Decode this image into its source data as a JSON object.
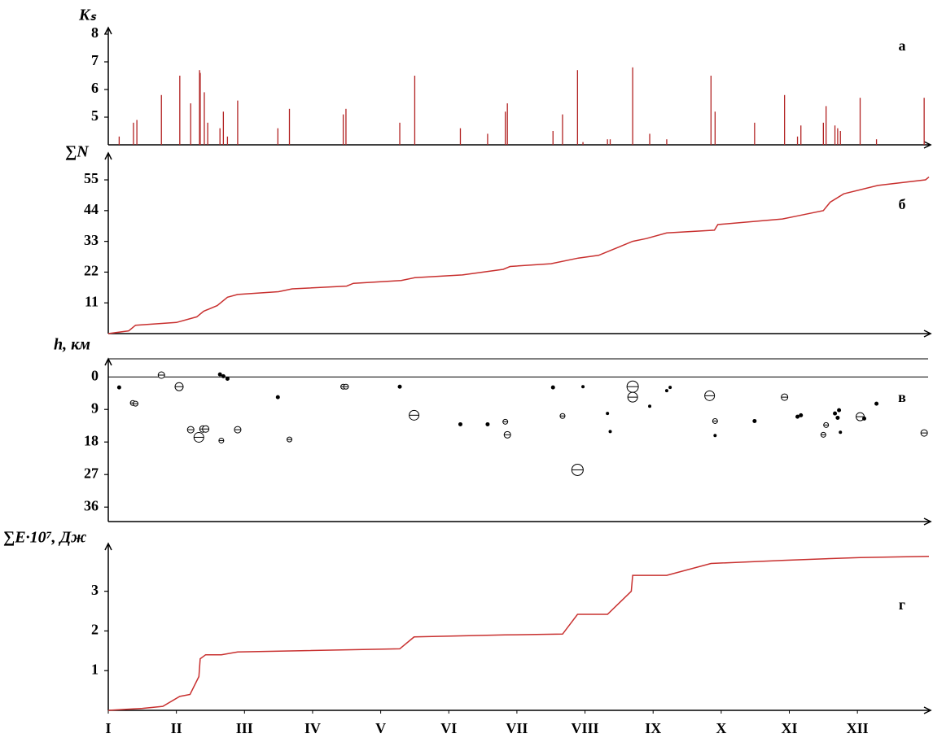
{
  "chart_data": [
    {
      "type": "bar",
      "y_label": "Kₛ",
      "annotation": "а",
      "color": "#b22222",
      "x": [
        0.16,
        0.37,
        0.42,
        0.78,
        1.05,
        1.21,
        1.34,
        1.35,
        1.41,
        1.46,
        1.64,
        1.69,
        1.75,
        1.9,
        2.49,
        2.66,
        3.45,
        3.49,
        4.28,
        4.5,
        5.17,
        5.57,
        5.83,
        5.86,
        6.53,
        6.67,
        6.89,
        6.97,
        7.33,
        7.37,
        7.7,
        7.95,
        8.2,
        8.85,
        8.91,
        9.49,
        9.93,
        10.12,
        10.17,
        10.5,
        10.54,
        10.67,
        10.71,
        10.75,
        11.04,
        11.28,
        11.98
      ],
      "values": [
        4.3,
        4.8,
        4.9,
        5.8,
        6.5,
        5.5,
        6.7,
        6.6,
        5.9,
        4.8,
        4.6,
        5.2,
        4.3,
        5.6,
        4.6,
        5.3,
        5.1,
        5.3,
        4.8,
        6.5,
        4.6,
        4.4,
        5.2,
        5.5,
        4.5,
        5.1,
        6.7,
        4.1,
        4.2,
        4.2,
        6.8,
        4.4,
        4.2,
        6.5,
        5.2,
        4.8,
        5.8,
        4.3,
        4.7,
        4.8,
        5.4,
        4.7,
        4.6,
        4.5,
        5.7,
        4.2,
        5.7
      ],
      "xlim": [
        0,
        12.05
      ],
      "ylim": [
        4,
        8.1
      ],
      "yticks": [
        5,
        6,
        7,
        8
      ]
    },
    {
      "type": "line",
      "y_label": "∑N",
      "annotation": "б",
      "color": "#c8302f",
      "x": [
        0,
        0.3,
        0.4,
        1.0,
        1.3,
        1.4,
        1.6,
        1.75,
        1.9,
        2.5,
        2.7,
        3.5,
        3.6,
        4.3,
        4.5,
        5.2,
        5.8,
        5.9,
        6.5,
        6.9,
        7.2,
        7.4,
        7.7,
        7.9,
        8.2,
        8.9,
        8.95,
        9.9,
        10.1,
        10.5,
        10.6,
        10.8,
        11.3,
        12.0,
        12.05
      ],
      "values": [
        0,
        1,
        3,
        4,
        6,
        8,
        10,
        13,
        14,
        15,
        16,
        17,
        18,
        19,
        20,
        21,
        23,
        24,
        25,
        27,
        28,
        30,
        33,
        34,
        36,
        37,
        39,
        41,
        42,
        44,
        47,
        50,
        53,
        55,
        56
      ],
      "xlim": [
        0,
        12.05
      ],
      "ylim": [
        0,
        62
      ],
      "yticks": [
        11,
        22,
        33,
        44,
        55
      ]
    },
    {
      "type": "scatter",
      "y_label": "h, км",
      "annotation": "в",
      "color": "#000000",
      "y_inverted": true,
      "x": [
        0.16,
        0.36,
        0.4,
        0.78,
        1.04,
        1.21,
        1.33,
        1.39,
        1.43,
        1.66,
        1.64,
        1.69,
        1.75,
        1.9,
        2.49,
        2.66,
        3.45,
        3.49,
        4.28,
        4.49,
        5.17,
        5.57,
        5.83,
        5.86,
        6.53,
        6.67,
        6.89,
        6.97,
        7.33,
        7.37,
        7.7,
        7.7,
        7.95,
        8.2,
        8.25,
        8.83,
        8.91,
        8.91,
        9.49,
        9.93,
        10.12,
        10.17,
        10.5,
        10.54,
        10.67,
        10.71,
        10.73,
        10.75,
        11.04,
        11.1,
        11.28,
        11.98
      ],
      "y": [
        2.9,
        7.2,
        7.4,
        -0.5,
        2.7,
        14.6,
        16.7,
        14.4,
        14.4,
        17.6,
        -0.7,
        -0.2,
        0.5,
        14.6,
        5.6,
        17.3,
        2.7,
        2.7,
        2.7,
        10.6,
        13.1,
        13.1,
        12.4,
        16.0,
        2.9,
        10.8,
        25.7,
        2.7,
        10.1,
        15.1,
        2.7,
        5.6,
        8.1,
        3.8,
        2.9,
        5.2,
        12.2,
        16.2,
        12.2,
        5.6,
        11.0,
        10.6,
        16.0,
        13.3,
        10.1,
        11.3,
        9.2,
        15.3,
        11.0,
        11.5,
        7.4,
        15.5
      ],
      "sizes": [
        2,
        3,
        3,
        4,
        5,
        4,
        6,
        4,
        4,
        3,
        2,
        2,
        2,
        4,
        2,
        3,
        3,
        3,
        2,
        6,
        2,
        2,
        3,
        4,
        2,
        3,
        7,
        1.5,
        1.5,
        1.5,
        7,
        6,
        1.5,
        1.5,
        1.5,
        6,
        3,
        1.5,
        2,
        4,
        2,
        2,
        3,
        3,
        2,
        2,
        2,
        1.5,
        5,
        2,
        2,
        4
      ],
      "xlim": [
        0,
        12.05
      ],
      "ylim": [
        -5,
        40
      ],
      "yticks": [
        0,
        9,
        18,
        27,
        36
      ]
    },
    {
      "type": "line",
      "y_label": "∑E·10⁷, Дж",
      "annotation": "г",
      "color": "#c8302f",
      "x": [
        0,
        0.5,
        0.8,
        1.05,
        1.2,
        1.33,
        1.35,
        1.43,
        1.66,
        1.9,
        4.28,
        4.49,
        5.83,
        6.67,
        6.89,
        7.33,
        7.68,
        7.7,
        8.2,
        8.85,
        9.93,
        11.04,
        12.05
      ],
      "values": [
        0,
        0.05,
        0.1,
        0.35,
        0.4,
        0.85,
        1.3,
        1.4,
        1.4,
        1.47,
        1.55,
        1.85,
        1.9,
        1.92,
        2.42,
        2.42,
        3.0,
        3.4,
        3.4,
        3.7,
        3.78,
        3.85,
        3.88
      ],
      "xlim": [
        0,
        12.05
      ],
      "ylim": [
        0,
        4.1
      ],
      "yticks": [
        1,
        2,
        3
      ],
      "xticks": [
        {
          "value": 0,
          "label": "I"
        },
        {
          "value": 1,
          "label": "II"
        },
        {
          "value": 2,
          "label": "III"
        },
        {
          "value": 3,
          "label": "IV"
        },
        {
          "value": 4,
          "label": "V"
        },
        {
          "value": 5,
          "label": "VI"
        },
        {
          "value": 6,
          "label": "VII"
        },
        {
          "value": 7,
          "label": "VIII"
        },
        {
          "value": 8,
          "label": "IX"
        },
        {
          "value": 9,
          "label": "X"
        },
        {
          "value": 10,
          "label": "XI"
        },
        {
          "value": 11,
          "label": "XII"
        }
      ]
    }
  ]
}
